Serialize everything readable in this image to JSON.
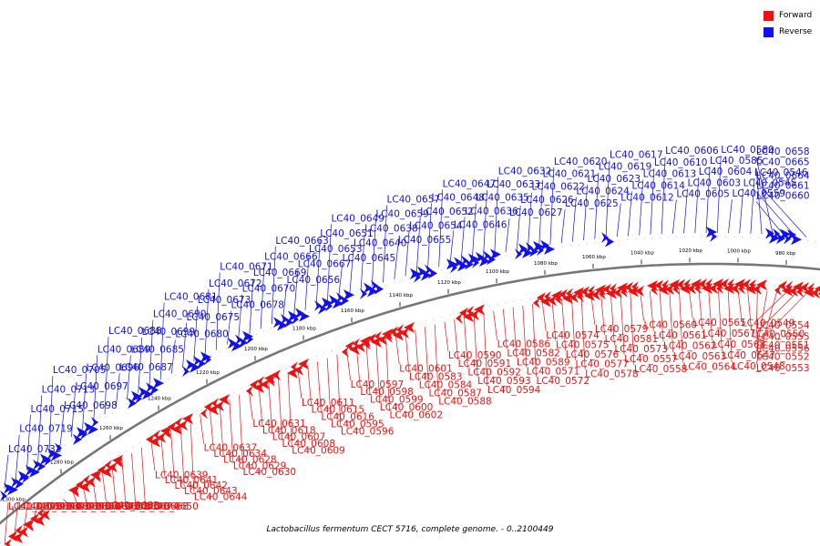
{
  "caption": "Lactobacillus fermentum CECT 5716, complete genome. - 0..2100449",
  "legend": [
    {
      "label": "Forward",
      "color": "#ee1111"
    },
    {
      "label": "Reverse",
      "color": "#1111ee"
    }
  ],
  "colors": {
    "forward": "#ee1111",
    "reverse": "#1111ee",
    "backbone": "#777777"
  },
  "ticks": [
    "1300 kbp",
    "1280 kbp",
    "1260 kbp",
    "1240 kbp",
    "1220 kbp",
    "1200 kbp",
    "1180 kbp",
    "1160 kbp",
    "1140 kbp",
    "1120 kbp",
    "1100 kbp",
    "1080 kbp",
    "1060 kbp",
    "1040 kbp",
    "1020 kbp",
    "1000 kbp",
    "980 kbp"
  ],
  "reverse_labels": [
    "LC40_0733",
    "LC40_0719",
    "LC40_0715",
    "LC40_0713",
    "LC40_0705",
    "LC40_0698",
    "LC40_0697",
    "LC40_0696",
    "LC40_0689",
    "LC40_0688",
    "LC40_0687",
    "LC40_0685",
    "LC40_0699",
    "LC40_0690",
    "LC40_0681",
    "LC40_0680",
    "LC40_0675",
    "LC40_0673",
    "LC40_0672",
    "LC40_0671",
    "LC40_0678",
    "LC40_0670",
    "LC40_0669",
    "LC40_0666",
    "LC40_0663",
    "LC40_0656",
    "LC40_0667",
    "LC40_0653",
    "LC40_0651",
    "LC40_0649",
    "LC40_0645",
    "LC40_0640",
    "LC40_0638",
    "LC40_0659",
    "LC40_0657",
    "LC40_0655",
    "LC40_0654",
    "LC40_0652",
    "LC40_0648",
    "LC40_0647",
    "LC40_0646",
    "LC40_0636",
    "LC40_0635",
    "LC40_0633",
    "LC40_0632",
    "LC40_0627",
    "LC40_0626",
    "LC40_0622",
    "LC40_0621",
    "LC40_0620",
    "LC40_0625",
    "LC40_0624",
    "LC40_0623",
    "LC40_0619",
    "LC40_0617",
    "LC40_0612",
    "LC40_0614",
    "LC40_0613",
    "LC40_0610",
    "LC40_0606",
    "LC40_0605",
    "LC40_0603",
    "LC40_0604",
    "LC40_0585",
    "LC40_0580",
    "LC40_0559",
    "LC40_0545",
    "LC40_0546",
    "LC40_0665",
    "LC40_0658",
    "LC40_0660",
    "LC40_0661",
    "LC40_0664"
  ],
  "forward_labels": [
    "LC40_0695",
    "LC40_0693",
    "LC40_0694",
    "LC40_0691",
    "LC40_0692",
    "LC40_0686",
    "LC40_0684",
    "LC40_0679",
    "LC40_0677",
    "LC40_0682",
    "LC40_0683",
    "LC40_0676",
    "LC40_0674",
    "LC40_0668",
    "LC40_0650",
    "LC40_0639",
    "LC40_0641",
    "LC40_0642",
    "LC40_0643",
    "LC40_0644",
    "LC40_0637",
    "LC40_0634",
    "LC40_0628",
    "LC40_0629",
    "LC40_0630",
    "LC40_0631",
    "LC40_0618",
    "LC40_0607",
    "LC40_0608",
    "LC40_0609",
    "LC40_0611",
    "LC40_0615",
    "LC40_0616",
    "LC40_0595",
    "LC40_0596",
    "LC40_0597",
    "LC40_0598",
    "LC40_0599",
    "LC40_0600",
    "LC40_0602",
    "LC40_0601",
    "LC40_0583",
    "LC40_0584",
    "LC40_0587",
    "LC40_0588",
    "LC40_0590",
    "LC40_0591",
    "LC40_0592",
    "LC40_0593",
    "LC40_0594",
    "LC40_0586",
    "LC40_0582",
    "LC40_0589",
    "LC40_0571",
    "LC40_0572",
    "LC40_0574",
    "LC40_0575",
    "LC40_0576",
    "LC40_0577",
    "LC40_0578",
    "LC40_0579",
    "LC40_0581",
    "LC40_0573",
    "LC40_0557",
    "LC40_0558",
    "LC40_0560",
    "LC40_0561",
    "LC40_0562",
    "LC40_0563",
    "LC40_0564",
    "LC40_0565",
    "LC40_0567",
    "LC40_0568",
    "LC40_0547",
    "LC40_0548",
    "LC40_0549",
    "LC40_0550",
    "LC40_0551",
    "LC40_0552",
    "LC40_0553",
    "LC40_0554",
    "LC40_0555",
    "LC40_0556"
  ]
}
